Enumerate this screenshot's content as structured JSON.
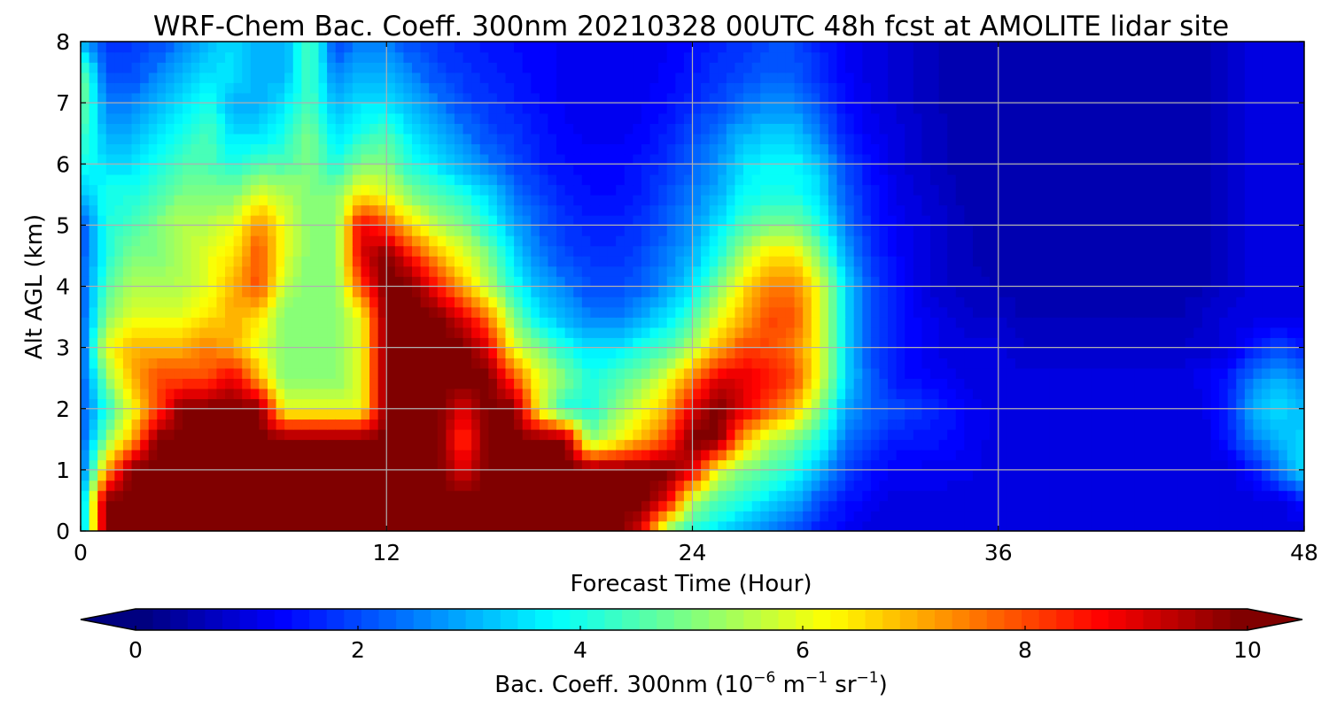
{
  "chart_data": {
    "type": "heatmap",
    "title": "WRF-Chem Bac. Coeff. 300nm  20210328 00UTC 48h fcst at AMOLITE lidar site",
    "xlabel": "Forecast Time (Hour)",
    "ylabel": "Alt AGL (km)",
    "xlim": [
      0,
      48
    ],
    "ylim": [
      0,
      8
    ],
    "x_ticks": [
      0,
      12,
      24,
      36,
      48
    ],
    "y_ticks": [
      0,
      1,
      2,
      3,
      4,
      5,
      6,
      7,
      8
    ],
    "grid": true,
    "colormap": "jet",
    "colorbar": {
      "label_main": "Bac. Coeff. 300nm  (10",
      "exp1": "−6",
      "label_mid": " m",
      "exp2": "−1",
      "label_mid2": " sr",
      "exp3": "−1",
      "label_end": ")",
      "range": [
        0,
        10
      ],
      "ticks": [
        0,
        2,
        4,
        6,
        8,
        10
      ],
      "extend": "both",
      "levels": 64
    },
    "field_description": "Backscatter coefficient (1e-6 m^-1 sr^-1) vs forecast hour and altitude, values estimated from contour colours",
    "x": [
      0,
      1,
      2,
      3,
      4,
      5,
      6,
      7,
      8,
      9,
      10,
      11,
      12,
      13,
      14,
      15,
      16,
      17,
      18,
      19,
      20,
      21,
      22,
      23,
      24,
      25,
      26,
      27,
      28,
      29,
      30,
      31,
      32,
      33,
      34,
      35,
      36,
      37,
      38,
      39,
      40,
      41,
      42,
      43,
      44,
      45,
      46,
      47,
      48
    ],
    "y": [
      0,
      0.5,
      1,
      1.5,
      2,
      2.5,
      3,
      3.5,
      4,
      4.5,
      5,
      5.5,
      6,
      6.5,
      7,
      7.5,
      8
    ],
    "z": [
      [
        2.5,
        10,
        10,
        10,
        10,
        10,
        10,
        10,
        10,
        10,
        10,
        10,
        10,
        10,
        10,
        10,
        10,
        10,
        10,
        10,
        10,
        10,
        9,
        5,
        4,
        3.5,
        3,
        2.5,
        2,
        1.5,
        1.2,
        1,
        1,
        1,
        1,
        1,
        1,
        1,
        1,
        1,
        1,
        1,
        1,
        1,
        1,
        1,
        1,
        1,
        1
      ],
      [
        2.5,
        10,
        10,
        10,
        10,
        10,
        10,
        10,
        10,
        10,
        10,
        10,
        10,
        10,
        10,
        10,
        10,
        10,
        10,
        10,
        10,
        10,
        10,
        9,
        5.5,
        4.5,
        4,
        3.5,
        3,
        2,
        1.5,
        1.2,
        1,
        1,
        1,
        1,
        1,
        1,
        1,
        1,
        1,
        1,
        1,
        1,
        1,
        1,
        1,
        1,
        1.5
      ],
      [
        2,
        7,
        10,
        10,
        10,
        10,
        10,
        10,
        10,
        10,
        10,
        10,
        10,
        10,
        10,
        9,
        10,
        10,
        10,
        10,
        10,
        10,
        10,
        10,
        9,
        6,
        5,
        4.5,
        4,
        3,
        2,
        1.5,
        1.2,
        1.2,
        1.2,
        1.1,
        1,
        1,
        1,
        1,
        1,
        1,
        1,
        1,
        1,
        1,
        1.5,
        2.5,
        3.5
      ],
      [
        2,
        5,
        7,
        10,
        10,
        10,
        10,
        10,
        10,
        10,
        10,
        10,
        10,
        10,
        10,
        8,
        10,
        10,
        10,
        10,
        5,
        6,
        7,
        8,
        10,
        10,
        7,
        5.5,
        5,
        4,
        2.5,
        2,
        1.5,
        1.5,
        1.4,
        1.2,
        1,
        1,
        1,
        1,
        1,
        1,
        1,
        1,
        1,
        1.5,
        2.5,
        3,
        3.5
      ],
      [
        2,
        4,
        6,
        8,
        10,
        10,
        10,
        10,
        6,
        6,
        6,
        6,
        10,
        10,
        10,
        9,
        10,
        10,
        6,
        4,
        4,
        5,
        6,
        7,
        9,
        10,
        9,
        8,
        7,
        5,
        3,
        2.2,
        2,
        1.8,
        1.5,
        1.2,
        1,
        1,
        1,
        1,
        1,
        1,
        1,
        1,
        1,
        1.6,
        3,
        3.5,
        3
      ],
      [
        2,
        5,
        7,
        8,
        8,
        8,
        9,
        7,
        5,
        5,
        5,
        6,
        10,
        10,
        10,
        10,
        10,
        8,
        6,
        5,
        4,
        4.5,
        5,
        6,
        7.5,
        9,
        9,
        8.5,
        8,
        6,
        3.5,
        2.2,
        1.5,
        1.3,
        1.2,
        1,
        1,
        1,
        1,
        1,
        1,
        1,
        1,
        1,
        1.2,
        1.5,
        2.5,
        3,
        2.5
      ],
      [
        2,
        6,
        7,
        7,
        7,
        7.5,
        7,
        6,
        5,
        5,
        5,
        6,
        10,
        10,
        10,
        10,
        9,
        6,
        5,
        4,
        3.5,
        3.5,
        4,
        4.5,
        5.5,
        7,
        8,
        8,
        7.5,
        6,
        3.5,
        2,
        1.5,
        1.2,
        1,
        1,
        1,
        0.8,
        0.8,
        0.8,
        0.8,
        0.8,
        0.8,
        0.8,
        0.8,
        1,
        1.5,
        2,
        1.5
      ],
      [
        2,
        5,
        6,
        6,
        6,
        6.5,
        7,
        6.5,
        5,
        5,
        5,
        6,
        10,
        10,
        10,
        9,
        7.5,
        5,
        3.5,
        3,
        2.5,
        2.5,
        3,
        3.5,
        4.5,
        6,
        7,
        8,
        8,
        6,
        3.5,
        2,
        1.5,
        1.2,
        1,
        0.8,
        0.8,
        0.6,
        0.6,
        0.6,
        0.6,
        0.6,
        0.6,
        0.6,
        0.8,
        1,
        1,
        1,
        1
      ],
      [
        2,
        4.5,
        5.5,
        5.5,
        5.5,
        6,
        7,
        8,
        5.5,
        5,
        5,
        8,
        10,
        10,
        8.5,
        7,
        5.5,
        4,
        3,
        2.5,
        2,
        2,
        2.2,
        2.8,
        3.5,
        5,
        6.5,
        7.5,
        7.5,
        6,
        3.5,
        2,
        1.5,
        1,
        0.8,
        0.7,
        0.6,
        0.5,
        0.5,
        0.5,
        0.5,
        0.5,
        0.5,
        0.5,
        0.6,
        0.8,
        1,
        1,
        1
      ],
      [
        2,
        4,
        5,
        5,
        5.5,
        6,
        6.5,
        8,
        6,
        5,
        5,
        9,
        10,
        8.5,
        7,
        6,
        5,
        3.5,
        2.5,
        2,
        1.8,
        1.8,
        2,
        2.5,
        3,
        4,
        5.5,
        6.5,
        6.5,
        5,
        3,
        1.8,
        1.3,
        1,
        0.8,
        0.6,
        0.5,
        0.5,
        0.5,
        0.5,
        0.5,
        0.5,
        0.5,
        0.5,
        0.5,
        0.8,
        1,
        1,
        1
      ],
      [
        2,
        4,
        4.5,
        5,
        5.5,
        5.5,
        6,
        7.5,
        6,
        5,
        5,
        9,
        8,
        6.5,
        5.5,
        5,
        4,
        3,
        2.2,
        1.8,
        1.6,
        1.6,
        1.8,
        2.2,
        2.8,
        3.5,
        4.5,
        5,
        5,
        4,
        2.5,
        1.6,
        1.2,
        1,
        0.8,
        0.6,
        0.5,
        0.5,
        0.5,
        0.5,
        0.5,
        0.5,
        0.5,
        0.5,
        0.5,
        0.8,
        1,
        1,
        1
      ],
      [
        3,
        4,
        4,
        4.5,
        5,
        5,
        5,
        6,
        5.5,
        5,
        5,
        6.5,
        6,
        5,
        4.5,
        4,
        3.5,
        2.5,
        2,
        1.6,
        1.4,
        1.4,
        1.6,
        2,
        2.5,
        3,
        3.8,
        4,
        4,
        3.5,
        2.2,
        1.5,
        1.1,
        0.9,
        0.7,
        0.5,
        0.5,
        0.5,
        0.5,
        0.5,
        0.5,
        0.5,
        0.5,
        0.5,
        0.5,
        0.8,
        1,
        1,
        1
      ],
      [
        4,
        3.5,
        3.5,
        4,
        4.5,
        4.5,
        4,
        4.5,
        4.5,
        5,
        4,
        5,
        5,
        4,
        3.5,
        3,
        2.5,
        2,
        1.6,
        1.4,
        1.3,
        1.3,
        1.5,
        1.8,
        2.2,
        2.8,
        3.5,
        3.8,
        3.8,
        3.2,
        2,
        1.4,
        1,
        0.8,
        0.6,
        0.5,
        0.5,
        0.5,
        0.5,
        0.5,
        0.5,
        0.5,
        0.5,
        0.5,
        0.5,
        0.8,
        1,
        1,
        1
      ],
      [
        4.5,
        3,
        3,
        3.5,
        4,
        4.5,
        3.5,
        3.5,
        4,
        5,
        3.5,
        4,
        4.5,
        3.5,
        3,
        2.5,
        2,
        1.8,
        1.5,
        1.3,
        1.2,
        1.2,
        1.3,
        1.6,
        2,
        2.5,
        3,
        3.3,
        3.3,
        2.5,
        1.6,
        1.2,
        1,
        0.8,
        0.6,
        0.5,
        0.5,
        0.5,
        0.5,
        0.5,
        0.5,
        0.5,
        0.5,
        0.5,
        0.5,
        0.8,
        1,
        1,
        1
      ],
      [
        5,
        2.5,
        2.5,
        3,
        3.5,
        4,
        3,
        3,
        3.5,
        4.5,
        3,
        3.5,
        3.5,
        3,
        2.5,
        2,
        1.8,
        1.6,
        1.4,
        1.2,
        1.1,
        1.1,
        1.2,
        1.4,
        1.7,
        2,
        2.4,
        2.6,
        2.6,
        2,
        1.4,
        1.1,
        0.9,
        0.7,
        0.6,
        0.5,
        0.5,
        0.5,
        0.5,
        0.5,
        0.5,
        0.5,
        0.5,
        0.5,
        0.5,
        0.8,
        1,
        1,
        1
      ],
      [
        5,
        2,
        2,
        2.5,
        3,
        3.5,
        3.5,
        3,
        3,
        4.5,
        2.5,
        3,
        3,
        2.5,
        2,
        1.8,
        1.6,
        1.5,
        1.3,
        1.2,
        1.1,
        1.1,
        1.1,
        1.3,
        1.5,
        1.8,
        2,
        2.2,
        2.2,
        1.7,
        1.3,
        1,
        0.9,
        0.7,
        0.6,
        0.5,
        0.5,
        0.5,
        0.5,
        0.5,
        0.5,
        0.5,
        0.5,
        0.5,
        0.5,
        0.8,
        1,
        1,
        1
      ],
      [
        3,
        1.8,
        1.8,
        2,
        2.5,
        3,
        3.5,
        3,
        3,
        4.5,
        2,
        2.5,
        2.5,
        2,
        1.8,
        1.6,
        1.5,
        1.4,
        1.3,
        1.2,
        1.1,
        1.1,
        1.1,
        1.2,
        1.4,
        1.6,
        1.8,
        2,
        2,
        1.6,
        1.2,
        1,
        0.9,
        0.7,
        0.6,
        0.5,
        0.5,
        0.5,
        0.5,
        0.5,
        0.5,
        0.5,
        0.5,
        0.5,
        0.5,
        0.8,
        1,
        1,
        1
      ]
    ]
  }
}
